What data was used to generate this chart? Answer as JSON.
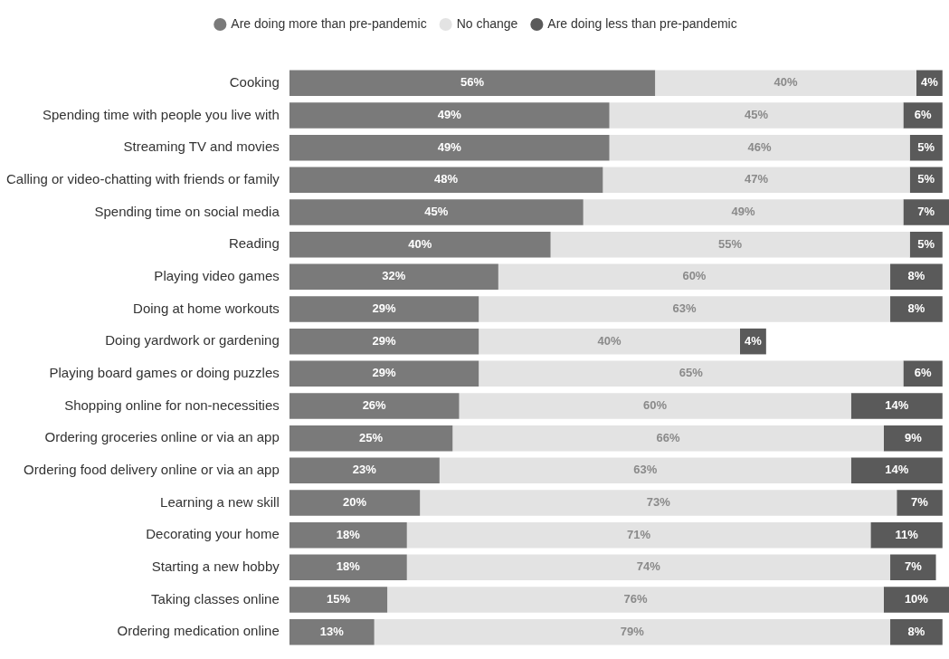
{
  "chart_data": {
    "type": "bar",
    "orientation": "horizontal",
    "stacked": true,
    "legend": "top",
    "xlim": [
      0,
      101
    ],
    "categories": [
      "Cooking",
      "Spending time with people you live with",
      "Streaming TV and movies",
      "Calling or video-chatting with friends or family",
      "Spending time on social media",
      "Reading",
      "Playing video games",
      "Doing at home workouts",
      "Doing yardwork or gardening",
      "Playing board games or doing puzzles",
      "Shopping online for non-necessities",
      "Ordering groceries online or via an app",
      "Ordering food delivery online or via an app",
      "Learning a new skill",
      "Decorating your home",
      "Starting a new hobby",
      "Taking classes online",
      "Ordering medication online"
    ],
    "series": [
      {
        "name": "Are doing more than pre-pandemic",
        "color": "#7a7a7a",
        "values": [
          56,
          49,
          49,
          48,
          45,
          40,
          32,
          29,
          29,
          29,
          26,
          25,
          23,
          20,
          18,
          18,
          15,
          13
        ],
        "value_labels": [
          "56%",
          "49%",
          "49%",
          "48%",
          "45%",
          "40%",
          "32%",
          "29%",
          "29%",
          "29%",
          "26%",
          "25%",
          "23%",
          "20%",
          "18%",
          "18%",
          "15%",
          "13%"
        ]
      },
      {
        "name": "No change",
        "color": "#e3e3e3",
        "values": [
          40,
          45,
          46,
          47,
          49,
          55,
          60,
          63,
          40,
          65,
          60,
          66,
          63,
          73,
          71,
          74,
          76,
          79
        ],
        "value_labels": [
          "40%",
          "45%",
          "46%",
          "47%",
          "49%",
          "55%",
          "60%",
          "63%",
          "40%",
          "65%",
          "60%",
          "66%",
          "63%",
          "73%",
          "71%",
          "74%",
          "76%",
          "79%"
        ]
      },
      {
        "name": "Are doing less than pre-pandemic",
        "color": "#5a5a5a",
        "values": [
          4,
          6,
          5,
          5,
          7,
          5,
          8,
          8,
          4,
          6,
          14,
          9,
          14,
          7,
          11,
          7,
          10,
          8
        ],
        "value_labels": [
          "4%",
          "6%",
          "5%",
          "5%",
          "7%",
          "5%",
          "8%",
          "8%",
          "4%",
          "6%",
          "14%",
          "9%",
          "14%",
          "7%",
          "11%",
          "7%",
          "10%",
          "8%"
        ]
      }
    ]
  }
}
